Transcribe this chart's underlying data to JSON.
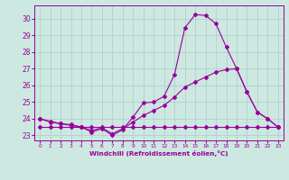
{
  "x": [
    0,
    1,
    2,
    3,
    4,
    5,
    6,
    7,
    8,
    9,
    10,
    11,
    12,
    13,
    14,
    15,
    16,
    17,
    18,
    19,
    20,
    21,
    22,
    23
  ],
  "line1": [
    24.0,
    23.8,
    23.7,
    23.6,
    23.5,
    23.2,
    23.4,
    23.0,
    23.35,
    24.1,
    24.95,
    25.0,
    25.35,
    26.65,
    29.45,
    30.25,
    30.2,
    29.7,
    28.3,
    27.0,
    25.6,
    24.4,
    24.0,
    23.5
  ],
  "line2": [
    24.0,
    23.85,
    23.7,
    23.65,
    23.5,
    23.3,
    23.45,
    23.1,
    23.4,
    23.8,
    24.2,
    24.5,
    24.8,
    25.3,
    25.9,
    26.2,
    26.5,
    26.8,
    26.95,
    27.0,
    25.6,
    24.4,
    24.0,
    23.5
  ],
  "line3": [
    23.5,
    23.5,
    23.5,
    23.5,
    23.5,
    23.5,
    23.5,
    23.5,
    23.5,
    23.5,
    23.5,
    23.5,
    23.5,
    23.5,
    23.5,
    23.5,
    23.5,
    23.5,
    23.5,
    23.5,
    23.5,
    23.5,
    23.5,
    23.5
  ],
  "line_color": "#990099",
  "bg_color": "#cce8e0",
  "grid_color": "#aacccc",
  "xlabel": "Windchill (Refroidissement éolien,°C)",
  "ylim": [
    22.7,
    30.8
  ],
  "xlim": [
    -0.5,
    23.5
  ],
  "yticks": [
    23,
    24,
    25,
    26,
    27,
    28,
    29,
    30
  ],
  "xticks": [
    0,
    1,
    2,
    3,
    4,
    5,
    6,
    7,
    8,
    9,
    10,
    11,
    12,
    13,
    14,
    15,
    16,
    17,
    18,
    19,
    20,
    21,
    22,
    23
  ]
}
